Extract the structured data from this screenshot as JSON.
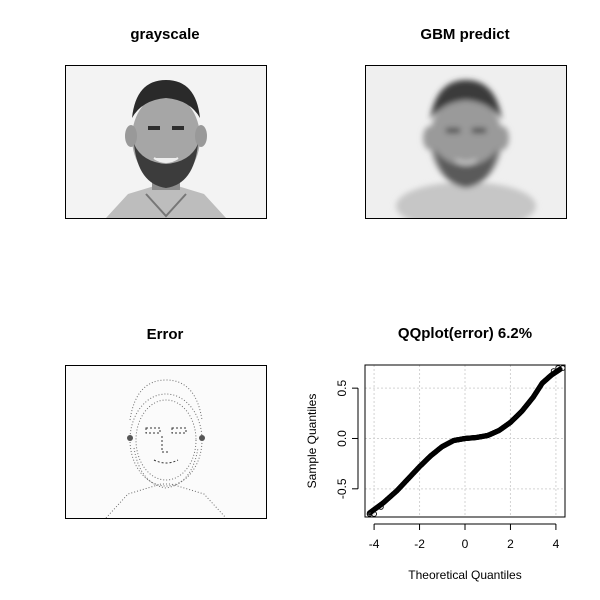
{
  "panels": {
    "grayscale": {
      "title": "grayscale"
    },
    "gbm_predict": {
      "title": "GBM predict"
    },
    "error": {
      "title": "Error"
    }
  },
  "chart_data": {
    "type": "scatter",
    "title": "QQplot(error) 6.2%",
    "xlabel": "Theoretical Quantiles",
    "ylabel": "Sample Quantiles",
    "xlim": [
      -4.4,
      4.4
    ],
    "ylim": [
      -0.78,
      0.73
    ],
    "xticks": [
      -4,
      -2,
      0,
      2,
      4
    ],
    "yticks": [
      -0.5,
      0.0,
      0.5
    ],
    "ytick_labels": [
      "-0.5",
      "0.0",
      "0.5"
    ],
    "grid": true,
    "grid_color": "#d3d3d3",
    "marker": "open-circle",
    "series_color": "#000000",
    "curve": [
      {
        "x": -4.2,
        "y": -0.74
      },
      {
        "x": -3.6,
        "y": -0.64
      },
      {
        "x": -3.0,
        "y": -0.52
      },
      {
        "x": -2.5,
        "y": -0.4
      },
      {
        "x": -2.0,
        "y": -0.28
      },
      {
        "x": -1.5,
        "y": -0.17
      },
      {
        "x": -1.0,
        "y": -0.08
      },
      {
        "x": -0.5,
        "y": -0.02
      },
      {
        "x": 0.0,
        "y": 0.0
      },
      {
        "x": 0.5,
        "y": 0.01
      },
      {
        "x": 1.0,
        "y": 0.03
      },
      {
        "x": 1.5,
        "y": 0.08
      },
      {
        "x": 2.0,
        "y": 0.16
      },
      {
        "x": 2.5,
        "y": 0.27
      },
      {
        "x": 3.0,
        "y": 0.41
      },
      {
        "x": 3.4,
        "y": 0.55
      },
      {
        "x": 3.8,
        "y": 0.63
      },
      {
        "x": 4.2,
        "y": 0.69
      }
    ],
    "outliers": [
      {
        "x": -4.2,
        "y": -0.75
      },
      {
        "x": -4.0,
        "y": -0.75
      },
      {
        "x": -3.7,
        "y": -0.68
      },
      {
        "x": 3.9,
        "y": 0.67
      },
      {
        "x": 4.1,
        "y": 0.7
      },
      {
        "x": 4.3,
        "y": 0.7
      }
    ]
  }
}
